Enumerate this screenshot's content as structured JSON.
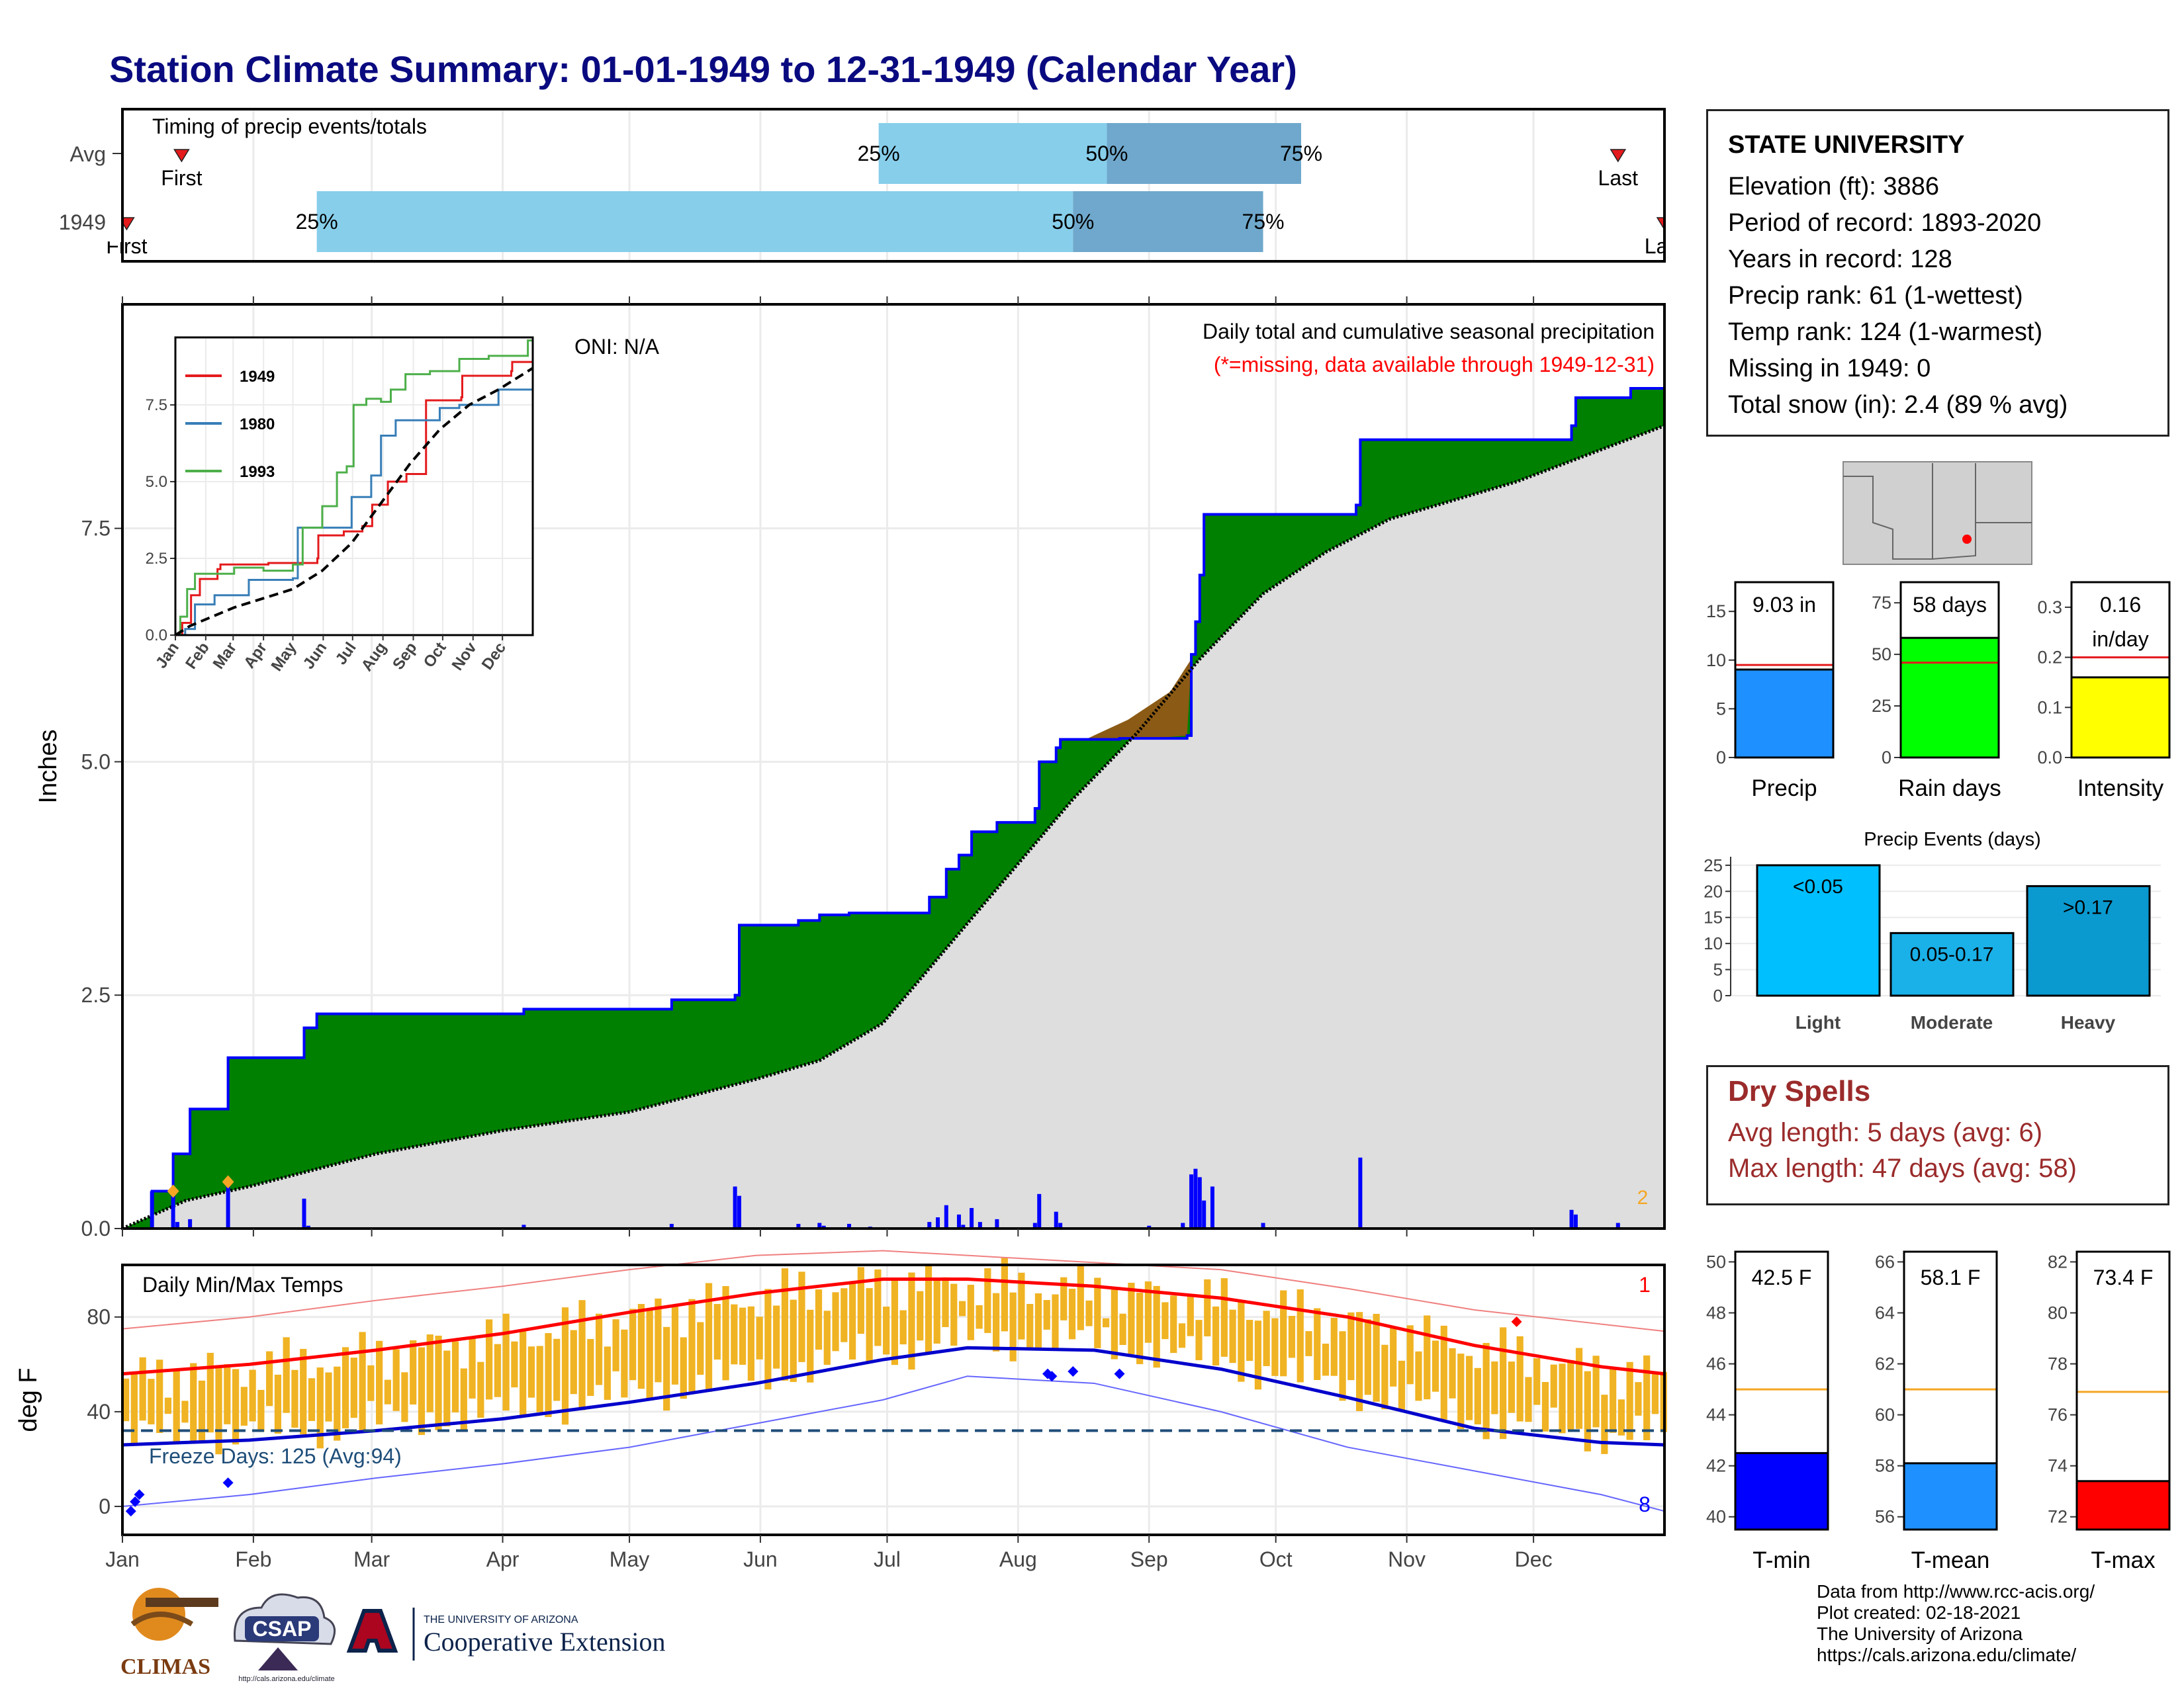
{
  "title": "Station Climate Summary: 01-01-1949 to 12-31-1949 (Calendar Year)",
  "station": {
    "name": "STATE UNIVERSITY",
    "lines": [
      "Elevation (ft): 3886",
      "Period of record: 1893-2020",
      "Years in record: 128",
      "Precip rank: 61 (1-wettest)",
      "Temp rank: 124 (1-warmest)",
      "Missing in 1949: 0",
      "Total snow (in): 2.4 (89 % avg)"
    ]
  },
  "dry_spells": {
    "title": "Dry Spells",
    "avg_line": "Avg length: 5 days (avg: 6)",
    "max_line": "Max length: 47 days (avg: 58)"
  },
  "credits": [
    "Data from http://www.rcc-acis.org/",
    "Plot created: 02-18-2021",
    "The University of Arizona",
    "https://cals.arizona.edu/climate/"
  ],
  "logos": {
    "climas": "CLIMAS",
    "csap": "CSAP",
    "csap_url": "http://cals.arizona.edu/climate",
    "ua_top": "THE UNIVERSITY OF ARIZONA",
    "ua_bottom": "Cooperative Extension"
  },
  "colors": {
    "navy_title": "#0a0a80",
    "green_fill": "#008000",
    "brown_fill": "#8b5a14",
    "gray_fill": "#dedede",
    "precip_bar": "#1e90ff",
    "rain_bar": "#00ff00",
    "intensity_bar": "#ffff00",
    "light_bar": "#00bfff",
    "moderate_bar": "#1ab0e8",
    "heavy_bar": "#0a9ad0",
    "tmin_bar": "#0000ff",
    "tmean_bar": "#1e90ff",
    "tmax_bar": "#ff0000",
    "avg_line": "#f5a623",
    "dry_red": "#9b2b2b"
  },
  "chart_data": [
    {
      "type": "timeline",
      "title": "Timing of precip events/totals",
      "rows": [
        {
          "label": "Avg",
          "first": "First",
          "last": "Last",
          "pct25": "25%",
          "pct50": "50%",
          "pct75": "75%",
          "first_doy": 14,
          "p25_doy": 179,
          "p50_doy": 233,
          "p75_doy": 279,
          "last_doy": 354
        },
        {
          "label": "1949",
          "first": "First",
          "last": "Last",
          "pct25": "25%",
          "pct50": "50%",
          "pct75": "75%",
          "first_doy": 1,
          "p25_doy": 46,
          "p50_doy": 225,
          "p75_doy": 270,
          "last_doy": 365
        }
      ]
    },
    {
      "type": "area",
      "title": "Daily total and cumulative seasonal precipitation",
      "subtitle": "(*=missing, data available through 1949-12-31)",
      "annotation": "ONI: N/A",
      "ylabel": "Inches",
      "ylim": [
        0,
        9.9
      ],
      "yticks": [
        "0.0",
        "2.5",
        "5.0",
        "7.5"
      ],
      "snow_days_label": "2",
      "cumulative_1949": [
        [
          0,
          0
        ],
        [
          7,
          0.4
        ],
        [
          12,
          0.8
        ],
        [
          16,
          1.28
        ],
        [
          23,
          1.28
        ],
        [
          25,
          1.83
        ],
        [
          42,
          1.83
        ],
        [
          43,
          2.15
        ],
        [
          46,
          2.3
        ],
        [
          95,
          2.35
        ],
        [
          130,
          2.45
        ],
        [
          145,
          2.5
        ],
        [
          146,
          3.25
        ],
        [
          160,
          3.3
        ],
        [
          165,
          3.36
        ],
        [
          172,
          3.38
        ],
        [
          190,
          3.38
        ],
        [
          191,
          3.55
        ],
        [
          195,
          3.85
        ],
        [
          198,
          4.0
        ],
        [
          201,
          4.25
        ],
        [
          207,
          4.35
        ],
        [
          216,
          4.5
        ],
        [
          217,
          5.0
        ],
        [
          221,
          5.15
        ],
        [
          222,
          5.24
        ],
        [
          230,
          5.24
        ],
        [
          236,
          5.25
        ],
        [
          243,
          5.25
        ],
        [
          252,
          5.28
        ],
        [
          253,
          6.15
        ],
        [
          254,
          6.5
        ],
        [
          255,
          7.0
        ],
        [
          256,
          7.65
        ],
        [
          270,
          7.65
        ],
        [
          292,
          7.75
        ],
        [
          293,
          8.45
        ],
        [
          330,
          8.45
        ],
        [
          343,
          8.6
        ],
        [
          344,
          8.9
        ],
        [
          357,
          9.0
        ],
        [
          365,
          9.03
        ]
      ],
      "cumulative_avg": [
        [
          0,
          0
        ],
        [
          15,
          0.3
        ],
        [
          30,
          0.45
        ],
        [
          60,
          0.8
        ],
        [
          90,
          1.05
        ],
        [
          120,
          1.25
        ],
        [
          150,
          1.6
        ],
        [
          165,
          1.8
        ],
        [
          180,
          2.2
        ],
        [
          195,
          3.0
        ],
        [
          210,
          3.8
        ],
        [
          225,
          4.6
        ],
        [
          240,
          5.3
        ],
        [
          255,
          6.1
        ],
        [
          270,
          6.8
        ],
        [
          285,
          7.25
        ],
        [
          300,
          7.6
        ],
        [
          330,
          8.0
        ],
        [
          365,
          8.6
        ]
      ],
      "daily_bars": [
        [
          7,
          0.4
        ],
        [
          12,
          0.4
        ],
        [
          13,
          0.07
        ],
        [
          16,
          0.1
        ],
        [
          25,
          0.48
        ],
        [
          43,
          0.32
        ],
        [
          44,
          0.03
        ],
        [
          95,
          0.04
        ],
        [
          130,
          0.05
        ],
        [
          145,
          0.45
        ],
        [
          146,
          0.35
        ],
        [
          160,
          0.05
        ],
        [
          165,
          0.06
        ],
        [
          166,
          0.03
        ],
        [
          172,
          0.05
        ],
        [
          177,
          0.02
        ],
        [
          191,
          0.07
        ],
        [
          193,
          0.12
        ],
        [
          195,
          0.25
        ],
        [
          198,
          0.15
        ],
        [
          199,
          0.04
        ],
        [
          201,
          0.22
        ],
        [
          203,
          0.07
        ],
        [
          207,
          0.1
        ],
        [
          216,
          0.06
        ],
        [
          217,
          0.37
        ],
        [
          221,
          0.18
        ],
        [
          222,
          0.06
        ],
        [
          243,
          0.03
        ],
        [
          251,
          0.06
        ],
        [
          253,
          0.58
        ],
        [
          254,
          0.64
        ],
        [
          255,
          0.55
        ],
        [
          256,
          0.3
        ],
        [
          258,
          0.45
        ],
        [
          270,
          0.06
        ],
        [
          293,
          0.76
        ],
        [
          343,
          0.2
        ],
        [
          344,
          0.15
        ],
        [
          354,
          0.06
        ]
      ],
      "inset": {
        "series": [
          {
            "name": "1949",
            "color": "#e41a1c",
            "points": [
              [
                0,
                0
              ],
              [
                7,
                0.4
              ],
              [
                16,
                1.3
              ],
              [
                25,
                1.83
              ],
              [
                43,
                2.15
              ],
              [
                46,
                2.3
              ],
              [
                95,
                2.35
              ],
              [
                145,
                2.5
              ],
              [
                146,
                3.25
              ],
              [
                172,
                3.38
              ],
              [
                191,
                3.55
              ],
              [
                201,
                4.25
              ],
              [
                217,
                5.0
              ],
              [
                236,
                5.25
              ],
              [
                256,
                7.65
              ],
              [
                292,
                7.75
              ],
              [
                293,
                8.45
              ],
              [
                343,
                8.6
              ],
              [
                344,
                8.9
              ],
              [
                365,
                9.03
              ]
            ]
          },
          {
            "name": "1980",
            "color": "#377eb8",
            "points": [
              [
                0,
                0
              ],
              [
                10,
                0.2
              ],
              [
                20,
                1.0
              ],
              [
                40,
                1.3
              ],
              [
                60,
                1.3
              ],
              [
                75,
                1.8
              ],
              [
                120,
                1.85
              ],
              [
                125,
                3.5
              ],
              [
                175,
                3.5
              ],
              [
                180,
                4.5
              ],
              [
                200,
                5.2
              ],
              [
                210,
                6.5
              ],
              [
                225,
                7.0
              ],
              [
                270,
                7.4
              ],
              [
                290,
                7.5
              ],
              [
                330,
                8.0
              ],
              [
                365,
                8.0
              ]
            ]
          },
          {
            "name": "1993",
            "color": "#4daf4a",
            "points": [
              [
                0,
                0
              ],
              [
                5,
                0.6
              ],
              [
                12,
                1.5
              ],
              [
                20,
                2.0
              ],
              [
                60,
                2.2
              ],
              [
                90,
                2.1
              ],
              [
                120,
                2.3
              ],
              [
                130,
                3.5
              ],
              [
                150,
                4.2
              ],
              [
                165,
                5.3
              ],
              [
                175,
                5.5
              ],
              [
                182,
                7.5
              ],
              [
                195,
                7.7
              ],
              [
                210,
                7.6
              ],
              [
                220,
                8.0
              ],
              [
                235,
                8.5
              ],
              [
                260,
                8.6
              ],
              [
                290,
                9.0
              ],
              [
                320,
                9.1
              ],
              [
                360,
                9.6
              ],
              [
                365,
                9.7
              ]
            ]
          }
        ],
        "avg": [
          [
            0,
            0
          ],
          [
            15,
            0.3
          ],
          [
            30,
            0.5
          ],
          [
            60,
            0.9
          ],
          [
            90,
            1.2
          ],
          [
            120,
            1.5
          ],
          [
            150,
            2.1
          ],
          [
            180,
            3.0
          ],
          [
            210,
            4.3
          ],
          [
            240,
            5.6
          ],
          [
            270,
            6.7
          ],
          [
            300,
            7.5
          ],
          [
            330,
            8.0
          ],
          [
            365,
            8.7
          ]
        ],
        "yticks": [
          "0.0",
          "2.5",
          "5.0",
          "7.5"
        ],
        "ylim": [
          0,
          9.7
        ],
        "xticks": [
          "Jan",
          "Feb",
          "Mar",
          "Apr",
          "May",
          "Jun",
          "Jul",
          "Aug",
          "Sep",
          "Oct",
          "Nov",
          "Dec"
        ]
      }
    },
    {
      "type": "line",
      "title": "Daily Min/Max Temps",
      "ylabel": "deg F",
      "ylim": [
        -12,
        102
      ],
      "yticks": [
        "0",
        "40",
        "80"
      ],
      "freeze_label": "Freeze Days: 125 (Avg:94)",
      "freeze_line_f": 32,
      "record_high_count": "1",
      "record_low_count": "8",
      "normal_max": [
        [
          0,
          56
        ],
        [
          30,
          60
        ],
        [
          60,
          66
        ],
        [
          90,
          73
        ],
        [
          120,
          82
        ],
        [
          150,
          90
        ],
        [
          180,
          96
        ],
        [
          200,
          96
        ],
        [
          230,
          93
        ],
        [
          260,
          88
        ],
        [
          290,
          80
        ],
        [
          320,
          68
        ],
        [
          350,
          59
        ],
        [
          365,
          56
        ]
      ],
      "normal_min": [
        [
          0,
          26
        ],
        [
          30,
          28
        ],
        [
          60,
          32
        ],
        [
          90,
          37
        ],
        [
          120,
          44
        ],
        [
          150,
          52
        ],
        [
          180,
          62
        ],
        [
          200,
          67
        ],
        [
          230,
          66
        ],
        [
          260,
          58
        ],
        [
          290,
          46
        ],
        [
          320,
          33
        ],
        [
          350,
          27
        ],
        [
          365,
          26
        ]
      ],
      "record_max": [
        [
          0,
          75
        ],
        [
          30,
          80
        ],
        [
          60,
          87
        ],
        [
          90,
          93
        ],
        [
          120,
          100
        ],
        [
          150,
          106
        ],
        [
          180,
          108
        ],
        [
          200,
          106
        ],
        [
          230,
          103
        ],
        [
          260,
          100
        ],
        [
          290,
          92
        ],
        [
          320,
          83
        ],
        [
          350,
          77
        ],
        [
          365,
          74
        ]
      ],
      "record_min": [
        [
          0,
          0
        ],
        [
          30,
          5
        ],
        [
          60,
          12
        ],
        [
          90,
          18
        ],
        [
          120,
          25
        ],
        [
          150,
          35
        ],
        [
          180,
          45
        ],
        [
          200,
          55
        ],
        [
          230,
          52
        ],
        [
          260,
          40
        ],
        [
          290,
          25
        ],
        [
          320,
          15
        ],
        [
          350,
          5
        ],
        [
          365,
          -2
        ]
      ],
      "xticks": [
        "Jan",
        "Feb",
        "Mar",
        "Apr",
        "May",
        "Jun",
        "Jul",
        "Aug",
        "Sep",
        "Oct",
        "Nov",
        "Dec"
      ]
    },
    {
      "type": "bar",
      "categories": [
        "Precip",
        "Rain days",
        "Intensity"
      ],
      "panels": [
        {
          "category": "Precip",
          "value": 9.03,
          "avg": 9.5,
          "ylim": [
            0,
            18
          ],
          "yticks": [
            "0",
            "5",
            "10",
            "15"
          ],
          "label": "9.03 in"
        },
        {
          "category": "Rain days",
          "value": 58,
          "avg": 46,
          "ylim": [
            0,
            85
          ],
          "yticks": [
            "0",
            "25",
            "50",
            "75"
          ],
          "label": "58 days"
        },
        {
          "category": "Intensity",
          "value": 0.16,
          "avg": 0.2,
          "ylim": [
            0,
            0.35
          ],
          "yticks": [
            "0.0",
            "0.1",
            "0.2",
            "0.3"
          ],
          "label": "0.16",
          "label2": "in/day"
        }
      ]
    },
    {
      "type": "bar",
      "title": "Precip Events (days)",
      "categories": [
        "Light",
        "Moderate",
        "Heavy"
      ],
      "values": [
        25,
        12,
        21
      ],
      "bar_labels": [
        "<0.05",
        "0.05-0.17",
        ">0.17"
      ],
      "ylim": [
        0,
        26
      ],
      "yticks": [
        "0",
        "5",
        "10",
        "15",
        "20",
        "25"
      ]
    },
    {
      "type": "bar",
      "categories": [
        "T-min",
        "T-mean",
        "T-max"
      ],
      "panels": [
        {
          "category": "T-min",
          "value": 42.5,
          "avg": 45.0,
          "ylim": [
            39.5,
            50.4
          ],
          "yticks": [
            "40",
            "42",
            "44",
            "46",
            "48",
            "50"
          ],
          "label": "42.5 F"
        },
        {
          "category": "T-mean",
          "value": 58.1,
          "avg": 61.0,
          "ylim": [
            55.5,
            66.4
          ],
          "yticks": [
            "56",
            "58",
            "60",
            "62",
            "64",
            "66"
          ],
          "label": "58.1 F"
        },
        {
          "category": "T-max",
          "value": 73.4,
          "avg": 76.9,
          "ylim": [
            71.5,
            82.4
          ],
          "yticks": [
            "72",
            "74",
            "76",
            "78",
            "80",
            "82"
          ],
          "label": "73.4 F"
        }
      ]
    }
  ]
}
